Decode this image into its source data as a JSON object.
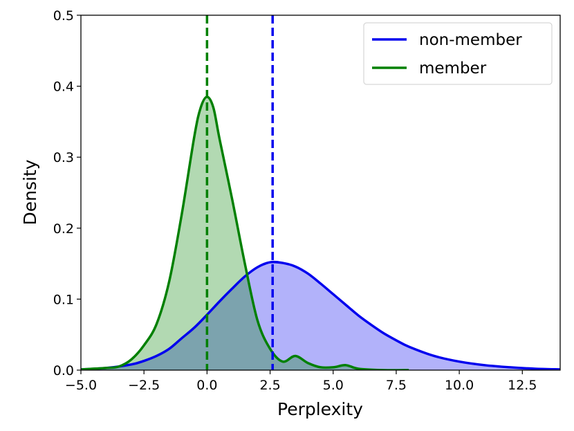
{
  "chart_data": {
    "type": "area",
    "title": "",
    "xlabel": "Perplexity",
    "ylabel": "Density",
    "xlim": [
      -5.0,
      14.0
    ],
    "ylim": [
      0.0,
      0.5
    ],
    "xticks": [
      "−5.0",
      "−2.5",
      "0.0",
      "2.5",
      "5.0",
      "7.5",
      "10.0",
      "12.5"
    ],
    "xtick_values": [
      -5.0,
      -2.5,
      0.0,
      2.5,
      5.0,
      7.5,
      10.0,
      12.5
    ],
    "yticks": [
      "0.0",
      "0.1",
      "0.2",
      "0.3",
      "0.4",
      "0.5"
    ],
    "ytick_values": [
      0.0,
      0.1,
      0.2,
      0.3,
      0.4,
      0.5
    ],
    "legend_position": "top-right",
    "series": [
      {
        "name": "non-member",
        "color": "#0000ee",
        "fill": "#b0b0ff",
        "mean_line": 2.6,
        "x": [
          -5,
          -4,
          -3,
          -2.5,
          -2,
          -1.5,
          -1,
          -0.5,
          0,
          0.5,
          1,
          1.5,
          2,
          2.5,
          3,
          3.5,
          4,
          4.5,
          5,
          5.5,
          6,
          6.5,
          7,
          7.5,
          8,
          9,
          10,
          11,
          12,
          13,
          14
        ],
        "values": [
          0.001,
          0.003,
          0.008,
          0.013,
          0.02,
          0.03,
          0.045,
          0.06,
          0.078,
          0.097,
          0.115,
          0.132,
          0.145,
          0.152,
          0.151,
          0.146,
          0.136,
          0.122,
          0.107,
          0.092,
          0.077,
          0.064,
          0.052,
          0.042,
          0.033,
          0.02,
          0.012,
          0.007,
          0.004,
          0.002,
          0.001
        ]
      },
      {
        "name": "member",
        "color": "#008000",
        "fill": "#b3dbb3",
        "mean_line": 0.0,
        "x": [
          -5,
          -4,
          -3.5,
          -3,
          -2.5,
          -2,
          -1.5,
          -1,
          -0.5,
          -0.25,
          0,
          0.25,
          0.5,
          1,
          1.5,
          2,
          2.5,
          3,
          3.5,
          4,
          4.5,
          5,
          5.5,
          6,
          7,
          8
        ],
        "values": [
          0.001,
          0.003,
          0.005,
          0.015,
          0.035,
          0.065,
          0.125,
          0.22,
          0.33,
          0.37,
          0.385,
          0.37,
          0.325,
          0.24,
          0.15,
          0.07,
          0.03,
          0.012,
          0.02,
          0.01,
          0.004,
          0.004,
          0.007,
          0.002,
          0.0,
          0.0
        ]
      }
    ]
  }
}
